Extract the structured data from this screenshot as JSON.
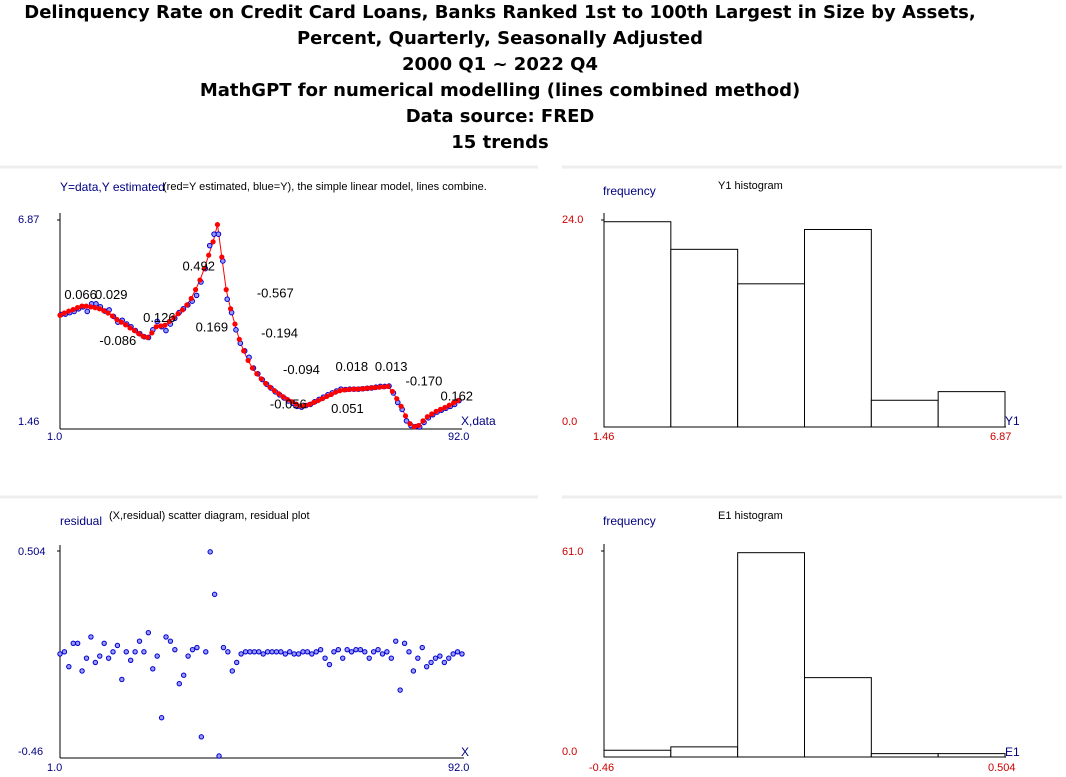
{
  "header": {
    "line1": "Delinquency Rate on Credit Card Loans, Banks Ranked 1st to 100th Largest in Size by Assets,",
    "line2": "Percent, Quarterly, Seasonally Adjusted",
    "line3": "2000 Q1 ~ 2022 Q4",
    "line4": "MathGPT for numerical modelling (lines combined method)",
    "line5": "Data source: FRED",
    "line6": "15 trends"
  },
  "chart_data": [
    {
      "type": "scatter",
      "name": "fit",
      "title": "(red=Y estimated, blue=Y), the simple linear model, lines combine.",
      "ylabel": "Y=data,Y estimated",
      "xlabel": "X,data",
      "xlim": [
        1.0,
        92.0
      ],
      "ylim": [
        1.46,
        6.87
      ],
      "x_ticks": [
        "1.0",
        "92.0"
      ],
      "y_ticks": [
        "1.46",
        "6.87"
      ],
      "colors": {
        "estimated": "#ff0000",
        "data": "#0000cc"
      },
      "x": [
        1,
        2,
        3,
        4,
        5,
        6,
        7,
        8,
        9,
        10,
        11,
        12,
        13,
        14,
        15,
        16,
        17,
        18,
        19,
        20,
        21,
        22,
        23,
        24,
        25,
        26,
        27,
        28,
        29,
        30,
        31,
        32,
        33,
        34,
        35,
        36,
        37,
        38,
        39,
        40,
        41,
        42,
        43,
        44,
        45,
        46,
        47,
        48,
        49,
        50,
        51,
        52,
        53,
        54,
        55,
        56,
        57,
        58,
        59,
        60,
        61,
        62,
        63,
        64,
        65,
        66,
        67,
        68,
        69,
        70,
        71,
        72,
        73,
        74,
        75,
        76,
        77,
        78,
        79,
        80,
        81,
        82,
        83,
        84,
        85,
        86,
        87,
        88,
        89,
        90,
        91,
        92
      ],
      "y_data": [
        4.4,
        4.41,
        4.45,
        4.48,
        4.55,
        4.6,
        4.48,
        4.68,
        4.68,
        4.6,
        4.49,
        4.52,
        4.35,
        4.2,
        4.25,
        4.15,
        4.08,
        3.98,
        3.9,
        3.82,
        3.8,
        4.0,
        4.22,
        4.08,
        3.98,
        4.15,
        4.3,
        4.45,
        4.55,
        4.65,
        4.75,
        4.9,
        5.25,
        5.6,
        6.2,
        6.5,
        6.5,
        5.8,
        4.8,
        4.45,
        4.0,
        3.65,
        3.45,
        3.28,
        3.0,
        2.85,
        2.7,
        2.58,
        2.48,
        2.38,
        2.3,
        2.22,
        2.14,
        2.08,
        2.0,
        1.98,
        2.02,
        2.05,
        2.12,
        2.18,
        2.24,
        2.3,
        2.35,
        2.4,
        2.45,
        2.44,
        2.45,
        2.45,
        2.45,
        2.46,
        2.47,
        2.48,
        2.5,
        2.52,
        2.52,
        2.53,
        2.35,
        2.1,
        1.92,
        1.62,
        1.5,
        1.47,
        1.46,
        1.58,
        1.7,
        1.78,
        1.85,
        1.9,
        1.95,
        2.0,
        2.05,
        2.15
      ],
      "y_estimated": [
        4.38,
        4.44,
        4.49,
        4.53,
        4.58,
        4.62,
        4.62,
        4.6,
        4.58,
        4.55,
        4.5,
        4.44,
        4.36,
        4.27,
        4.2,
        4.13,
        4.05,
        3.98,
        3.9,
        3.83,
        3.8,
        3.92,
        4.08,
        4.1,
        4.12,
        4.22,
        4.32,
        4.42,
        4.52,
        4.65,
        4.82,
        5.05,
        5.3,
        5.6,
        5.95,
        6.3,
        6.75,
        5.9,
        5.05,
        4.55,
        4.15,
        3.75,
        3.45,
        3.2,
        3.0,
        2.85,
        2.72,
        2.6,
        2.5,
        2.41,
        2.33,
        2.25,
        2.18,
        2.12,
        2.06,
        2.01,
        2.02,
        2.05,
        2.1,
        2.15,
        2.2,
        2.26,
        2.31,
        2.37,
        2.41,
        2.43,
        2.44,
        2.45,
        2.45,
        2.46,
        2.47,
        2.48,
        2.49,
        2.5,
        2.51,
        2.52,
        2.39,
        2.2,
        2.0,
        1.75,
        1.55,
        1.47,
        1.5,
        1.62,
        1.73,
        1.8,
        1.87,
        1.92,
        1.97,
        2.03,
        2.09,
        2.15
      ]
    },
    {
      "type": "bar",
      "name": "Y1 histogram",
      "title": "Y1 histogram",
      "ylabel": "frequency",
      "xlabel": "Y1",
      "xlim": [
        1.46,
        6.87
      ],
      "ylim": [
        0.0,
        24.0
      ],
      "x_ticks": [
        "1.46",
        "6.87"
      ],
      "y_ticks": [
        "0.0",
        "24.0"
      ],
      "values": [
        23.8,
        20.6,
        16.6,
        22.9,
        3.1,
        4.1
      ]
    },
    {
      "type": "scatter",
      "name": "residual",
      "title": "(X,residual) scatter diagram, residual plot",
      "ylabel": "residual",
      "xlabel": "X",
      "xlim": [
        1.0,
        92.0
      ],
      "ylim": [
        -0.46,
        0.504
      ],
      "x_ticks": [
        "1.0",
        "92.0"
      ],
      "y_ticks": [
        "0.504",
        "-0.46"
      ],
      "x": [
        1,
        2,
        3,
        4,
        5,
        6,
        7,
        8,
        9,
        10,
        11,
        12,
        13,
        14,
        15,
        16,
        17,
        18,
        19,
        20,
        21,
        22,
        23,
        24,
        25,
        26,
        27,
        28,
        29,
        30,
        31,
        32,
        33,
        34,
        35,
        36,
        37,
        38,
        39,
        40,
        41,
        42,
        43,
        44,
        45,
        46,
        47,
        48,
        49,
        50,
        51,
        52,
        53,
        54,
        55,
        56,
        57,
        58,
        59,
        60,
        61,
        62,
        63,
        64,
        65,
        66,
        67,
        68,
        69,
        70,
        71,
        72,
        73,
        74,
        75,
        76,
        77,
        78,
        79,
        80,
        81,
        82,
        83,
        84,
        85,
        86,
        87,
        88,
        89,
        90,
        91,
        92
      ],
      "values": [
        0.02,
        0.03,
        -0.04,
        0.07,
        0.07,
        -0.06,
        0.0,
        0.1,
        -0.02,
        0.01,
        0.07,
        0.0,
        0.03,
        0.06,
        -0.1,
        0.03,
        -0.01,
        0.03,
        0.08,
        0.03,
        0.12,
        -0.05,
        0.01,
        -0.28,
        0.1,
        0.08,
        0.04,
        -0.12,
        -0.08,
        0.01,
        0.04,
        0.05,
        -0.37,
        0.03,
        0.5,
        0.3,
        -0.46,
        0.05,
        0.03,
        -0.06,
        -0.02,
        0.02,
        0.03,
        0.03,
        0.03,
        0.03,
        0.02,
        0.03,
        0.03,
        0.03,
        0.03,
        0.02,
        0.03,
        0.02,
        0.02,
        0.03,
        0.03,
        0.02,
        0.03,
        0.04,
        0.0,
        -0.03,
        0.03,
        0.04,
        0.0,
        0.04,
        0.03,
        0.04,
        0.04,
        0.03,
        0.0,
        0.03,
        0.04,
        0.02,
        0.03,
        0.0,
        0.08,
        -0.15,
        0.07,
        0.03,
        -0.06,
        0.0,
        0.05,
        -0.04,
        -0.02,
        0.0,
        0.01,
        -0.02,
        0.0,
        0.02,
        0.03,
        0.02
      ]
    },
    {
      "type": "bar",
      "name": "E1 histogram",
      "title": "E1 histogram",
      "ylabel": "frequency",
      "xlabel": "E1",
      "xlim": [
        -0.46,
        0.504
      ],
      "ylim": [
        0.0,
        61.0
      ],
      "x_ticks": [
        "-0.46",
        "0.504"
      ],
      "y_ticks": [
        "0.0",
        "61.0"
      ],
      "values": [
        2.0,
        3.0,
        60.5,
        23.5,
        1.0,
        1.0
      ]
    }
  ],
  "trend_labels": [
    {
      "text": "0.066",
      "x": 2,
      "y": 4.8
    },
    {
      "text": "0.029",
      "x": 9,
      "y": 4.8
    },
    {
      "text": "-0.086",
      "x": 10,
      "y": 3.6
    },
    {
      "text": "0.126",
      "x": 20,
      "y": 4.2
    },
    {
      "text": "0.169",
      "x": 32,
      "y": 3.95
    },
    {
      "text": "0.492",
      "x": 29,
      "y": 5.55
    },
    {
      "text": "-0.567",
      "x": 46,
      "y": 4.85
    },
    {
      "text": "-0.194",
      "x": 47,
      "y": 3.8
    },
    {
      "text": "-0.094",
      "x": 52,
      "y": 2.85
    },
    {
      "text": "-0.056",
      "x": 49,
      "y": 1.95
    },
    {
      "text": "0.018",
      "x": 64,
      "y": 2.92
    },
    {
      "text": "0.051",
      "x": 63,
      "y": 1.82
    },
    {
      "text": "0.013",
      "x": 73,
      "y": 2.92
    },
    {
      "text": "-0.170",
      "x": 80,
      "y": 2.55
    },
    {
      "text": "0.162",
      "x": 88,
      "y": 2.15
    }
  ]
}
